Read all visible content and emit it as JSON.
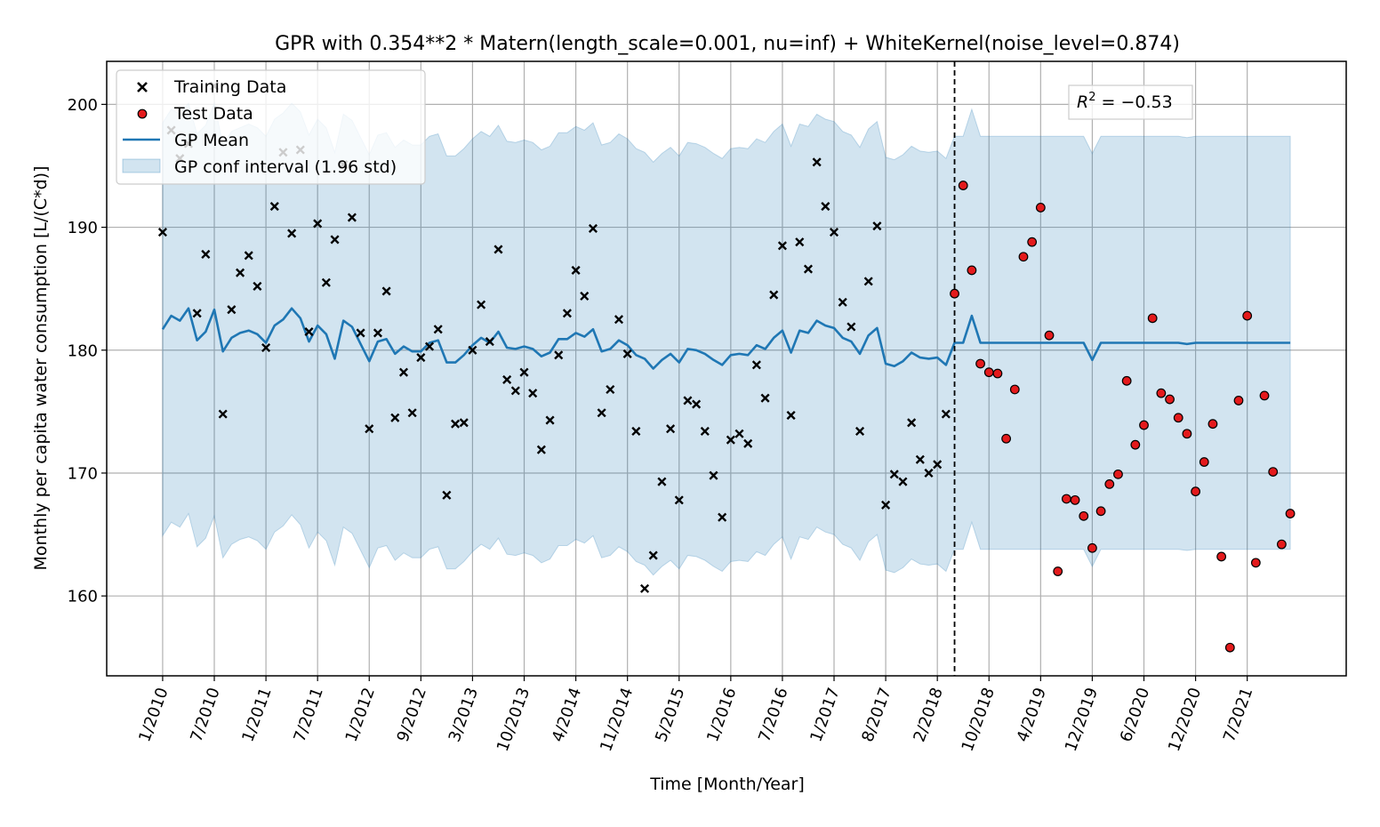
{
  "chart_data": {
    "type": "scatter",
    "title": "GPR with 0.354**2 * Matern(length_scale=0.001, nu=inf) + WhiteKernel(noise_level=0.874)",
    "xlabel": "Time [Month/Year]",
    "ylabel": "Monthly per capita water consumption [L/(C*d)]",
    "ylim": [
      153.5,
      203.5
    ],
    "xlim": [
      -6.5,
      137.5
    ],
    "y_ticks": [
      160,
      170,
      180,
      190,
      200
    ],
    "x_ticks": [
      {
        "x": 0,
        "label": "1/2010"
      },
      {
        "x": 6,
        "label": "7/2010"
      },
      {
        "x": 12,
        "label": "1/2011"
      },
      {
        "x": 18,
        "label": "7/2011"
      },
      {
        "x": 24,
        "label": "1/2012"
      },
      {
        "x": 30,
        "label": "9/2012"
      },
      {
        "x": 36,
        "label": "3/2013"
      },
      {
        "x": 42,
        "label": "10/2013"
      },
      {
        "x": 48,
        "label": "4/2014"
      },
      {
        "x": 54,
        "label": "11/2014"
      },
      {
        "x": 60,
        "label": "5/2015"
      },
      {
        "x": 66,
        "label": "1/2016"
      },
      {
        "x": 72,
        "label": "7/2016"
      },
      {
        "x": 78,
        "label": "1/2017"
      },
      {
        "x": 84,
        "label": "8/2017"
      },
      {
        "x": 90,
        "label": "2/2018"
      },
      {
        "x": 96,
        "label": "10/2018"
      },
      {
        "x": 102,
        "label": "4/2019"
      },
      {
        "x": 108,
        "label": "12/2019"
      },
      {
        "x": 114,
        "label": "6/2020"
      },
      {
        "x": 120,
        "label": "12/2020"
      },
      {
        "x": 126,
        "label": "7/2021"
      }
    ],
    "grid": true,
    "legend_position": "upper-left",
    "legend": [
      "Training Data",
      "Test Data",
      "GP Mean",
      "GP conf interval (1.96 std)"
    ],
    "split_x": 92,
    "annotation": {
      "prefix": "R",
      "superscript": "2",
      "text": " = −0.53",
      "position": "upper-right"
    },
    "colors": {
      "mean": "#1f77b4",
      "band": "#1f77b4",
      "test": "#e41a1c",
      "training": "#000000"
    },
    "training": {
      "name": "Training Data",
      "x": [
        0,
        1,
        2,
        3,
        4,
        5,
        6,
        7,
        8,
        9,
        10,
        11,
        12,
        13,
        14,
        15,
        16,
        17,
        18,
        19,
        20,
        21,
        22,
        23,
        24,
        25,
        26,
        27,
        28,
        29,
        30,
        31,
        32,
        33,
        34,
        35,
        36,
        37,
        38,
        39,
        40,
        41,
        42,
        43,
        44,
        45,
        46,
        47,
        48,
        49,
        50,
        51,
        52,
        53,
        54,
        55,
        56,
        57,
        58,
        59,
        60,
        61,
        62,
        63,
        64,
        65,
        66,
        67,
        68,
        69,
        70,
        71,
        72,
        73,
        74,
        75,
        76,
        77,
        78,
        79,
        80,
        81,
        82,
        83,
        84,
        85,
        86,
        87,
        88,
        89,
        90,
        91
      ],
      "y": [
        189.6,
        197.9,
        195.6,
        196.8,
        183.0,
        187.8,
        201.5,
        174.8,
        183.3,
        186.3,
        187.7,
        185.2,
        180.2,
        191.7,
        196.1,
        189.5,
        196.3,
        181.5,
        190.3,
        185.5,
        189.0,
        195.1,
        190.8,
        181.4,
        173.6,
        181.4,
        184.8,
        174.5,
        178.2,
        174.9,
        179.4,
        180.3,
        181.7,
        168.2,
        174.0,
        174.1,
        180.0,
        183.7,
        180.7,
        188.2,
        177.6,
        176.7,
        178.2,
        176.5,
        171.9,
        174.3,
        179.6,
        183.0,
        186.5,
        184.4,
        189.9,
        174.9,
        176.8,
        182.5,
        179.7,
        173.4,
        160.6,
        163.3,
        169.3,
        173.6,
        167.8,
        175.9,
        175.6,
        173.4,
        169.8,
        166.4,
        172.7,
        173.2,
        172.4,
        178.8,
        176.1,
        184.5,
        188.5,
        174.7,
        188.8,
        186.6,
        195.3,
        191.7,
        189.6,
        183.9,
        181.9,
        173.4,
        185.6,
        190.1,
        167.4,
        169.9,
        169.3,
        174.1,
        171.1,
        170.0,
        170.7,
        174.8
      ]
    },
    "test": {
      "name": "Test Data",
      "x": [
        92,
        93,
        94,
        95,
        96,
        97,
        98,
        99,
        100,
        101,
        102,
        103,
        104,
        105,
        106,
        107,
        108,
        109,
        110,
        111,
        112,
        113,
        114,
        115,
        116,
        117,
        118,
        119,
        120,
        121,
        122,
        123,
        124,
        125,
        126,
        127,
        128,
        129,
        130,
        131
      ],
      "y": [
        184.6,
        193.4,
        186.5,
        178.9,
        178.2,
        178.1,
        172.8,
        176.8,
        187.6,
        188.8,
        191.6,
        181.2,
        162.0,
        167.9,
        167.8,
        166.5,
        163.9,
        166.9,
        169.1,
        169.9,
        177.5,
        172.3,
        173.9,
        182.6,
        176.5,
        176.0,
        174.5,
        173.2,
        168.5,
        170.9,
        174.0,
        163.2,
        155.8,
        175.9,
        182.8,
        162.7,
        176.3,
        170.1,
        164.2,
        166.7
      ]
    },
    "gp_mean": {
      "name": "GP Mean",
      "x": [
        0,
        1,
        2,
        3,
        4,
        5,
        6,
        7,
        8,
        9,
        10,
        11,
        12,
        13,
        14,
        15,
        16,
        17,
        18,
        19,
        20,
        21,
        22,
        23,
        24,
        25,
        26,
        27,
        28,
        29,
        30,
        31,
        32,
        33,
        34,
        35,
        36,
        37,
        38,
        39,
        40,
        41,
        42,
        43,
        44,
        45,
        46,
        47,
        48,
        49,
        50,
        51,
        52,
        53,
        54,
        55,
        56,
        57,
        58,
        59,
        60,
        61,
        62,
        63,
        64,
        65,
        66,
        67,
        68,
        69,
        70,
        71,
        72,
        73,
        74,
        75,
        76,
        77,
        78,
        79,
        80,
        81,
        82,
        83,
        84,
        85,
        86,
        87,
        88,
        89,
        90,
        91,
        92,
        93,
        94,
        95,
        96,
        97,
        98,
        99,
        100,
        101,
        102,
        103,
        104,
        105,
        106,
        107,
        108,
        109,
        110,
        111,
        112,
        113,
        114,
        115,
        116,
        117,
        118,
        119,
        120,
        121,
        122,
        123,
        124,
        125,
        126,
        127,
        128,
        129,
        130,
        131
      ],
      "y": [
        181.7,
        182.8,
        182.4,
        183.4,
        180.8,
        181.5,
        183.3,
        179.9,
        181.0,
        181.4,
        181.6,
        181.3,
        180.6,
        182.0,
        182.5,
        183.4,
        182.6,
        180.7,
        182.0,
        181.3,
        179.3,
        182.4,
        181.9,
        180.5,
        179.1,
        180.7,
        180.9,
        179.7,
        180.3,
        179.9,
        179.9,
        180.6,
        180.8,
        179.0,
        179.0,
        179.6,
        180.4,
        181.0,
        180.6,
        181.5,
        180.2,
        180.1,
        180.3,
        180.1,
        179.5,
        179.8,
        180.9,
        180.9,
        181.4,
        181.1,
        181.7,
        179.9,
        180.1,
        180.8,
        180.4,
        179.6,
        179.3,
        178.5,
        179.2,
        179.7,
        179.0,
        180.1,
        180.0,
        179.7,
        179.2,
        178.8,
        179.6,
        179.7,
        179.6,
        180.4,
        180.1,
        181.0,
        181.6,
        179.8,
        181.6,
        181.4,
        182.4,
        182.0,
        181.8,
        181.0,
        180.7,
        179.7,
        181.2,
        181.8,
        178.9,
        178.7,
        179.1,
        179.8,
        179.4,
        179.3,
        179.4,
        178.8,
        180.6,
        180.6,
        182.8,
        180.6,
        180.6,
        180.6,
        180.6,
        180.6,
        180.6,
        180.6,
        180.6,
        180.6,
        180.6,
        180.6,
        180.6,
        180.6,
        179.2,
        180.6,
        180.6,
        180.6,
        180.6,
        180.6,
        180.6,
        180.6,
        180.6,
        180.6,
        180.6,
        180.5,
        180.6,
        180.6,
        180.6,
        180.6,
        180.6,
        180.6,
        180.6,
        180.6,
        180.6,
        180.6,
        180.6,
        180.6
      ]
    },
    "band": {
      "name": "GP conf interval (1.96 std)",
      "upper": [
        198.5,
        199.6,
        199.2,
        200.1,
        197.6,
        198.3,
        200.1,
        196.7,
        197.8,
        198.1,
        198.4,
        198.1,
        197.4,
        198.8,
        199.3,
        200.1,
        199.4,
        197.5,
        198.8,
        198.1,
        196.1,
        199.2,
        198.7,
        197.3,
        195.9,
        197.5,
        197.7,
        196.5,
        197.1,
        196.7,
        196.7,
        197.4,
        197.6,
        195.8,
        195.8,
        196.4,
        197.2,
        197.8,
        197.4,
        198.3,
        197.0,
        196.9,
        197.1,
        196.9,
        196.3,
        196.6,
        197.7,
        197.7,
        198.2,
        197.9,
        198.5,
        196.7,
        196.9,
        197.6,
        197.2,
        196.4,
        196.1,
        195.3,
        196.0,
        196.5,
        195.8,
        196.9,
        196.8,
        196.5,
        196.0,
        195.6,
        196.4,
        196.5,
        196.4,
        197.2,
        196.9,
        197.8,
        198.4,
        196.6,
        198.4,
        198.2,
        199.2,
        198.8,
        198.6,
        197.8,
        197.5,
        196.5,
        198.0,
        198.6,
        195.7,
        195.5,
        195.9,
        196.6,
        196.2,
        196.1,
        196.2,
        195.6,
        197.4,
        197.4,
        199.6,
        197.4,
        197.4,
        197.4,
        197.4,
        197.4,
        197.4,
        197.4,
        197.4,
        197.4,
        197.4,
        197.4,
        197.4,
        197.4,
        196.0,
        197.4,
        197.4,
        197.4,
        197.4,
        197.4,
        197.4,
        197.4,
        197.4,
        197.4,
        197.4,
        197.3,
        197.4,
        197.4,
        197.4,
        197.4,
        197.4,
        197.4,
        197.4,
        197.4,
        197.4,
        197.4,
        197.4,
        197.4
      ],
      "lower": [
        164.9,
        166.0,
        165.6,
        166.7,
        164.0,
        164.7,
        166.5,
        163.1,
        164.2,
        164.6,
        164.8,
        164.5,
        163.8,
        165.2,
        165.7,
        166.6,
        165.8,
        163.9,
        165.2,
        164.5,
        162.5,
        165.6,
        165.1,
        163.7,
        162.3,
        163.9,
        164.1,
        162.9,
        163.5,
        163.1,
        163.1,
        163.8,
        164.0,
        162.2,
        162.2,
        162.8,
        163.6,
        164.2,
        163.8,
        164.7,
        163.4,
        163.3,
        163.5,
        163.3,
        162.7,
        163.0,
        164.1,
        164.1,
        164.6,
        164.3,
        164.9,
        163.1,
        163.3,
        164.0,
        163.6,
        162.8,
        162.5,
        161.7,
        162.4,
        162.9,
        162.2,
        163.3,
        163.2,
        162.9,
        162.4,
        162.0,
        162.8,
        162.9,
        162.8,
        163.6,
        163.3,
        164.2,
        164.8,
        163.0,
        164.8,
        164.6,
        165.6,
        165.2,
        165.0,
        164.2,
        163.9,
        162.9,
        164.4,
        165.0,
        162.1,
        161.9,
        162.3,
        163.0,
        162.6,
        162.5,
        162.6,
        162.0,
        163.8,
        163.8,
        166.0,
        163.8,
        163.8,
        163.8,
        163.8,
        163.8,
        163.8,
        163.8,
        163.8,
        163.8,
        163.8,
        163.8,
        163.8,
        163.8,
        162.4,
        163.8,
        163.8,
        163.8,
        163.8,
        163.8,
        163.8,
        163.8,
        163.8,
        163.8,
        163.8,
        163.7,
        163.8,
        163.8,
        163.8,
        163.8,
        163.8,
        163.8,
        163.8,
        163.8,
        163.8,
        163.8,
        163.8,
        163.8
      ]
    }
  }
}
